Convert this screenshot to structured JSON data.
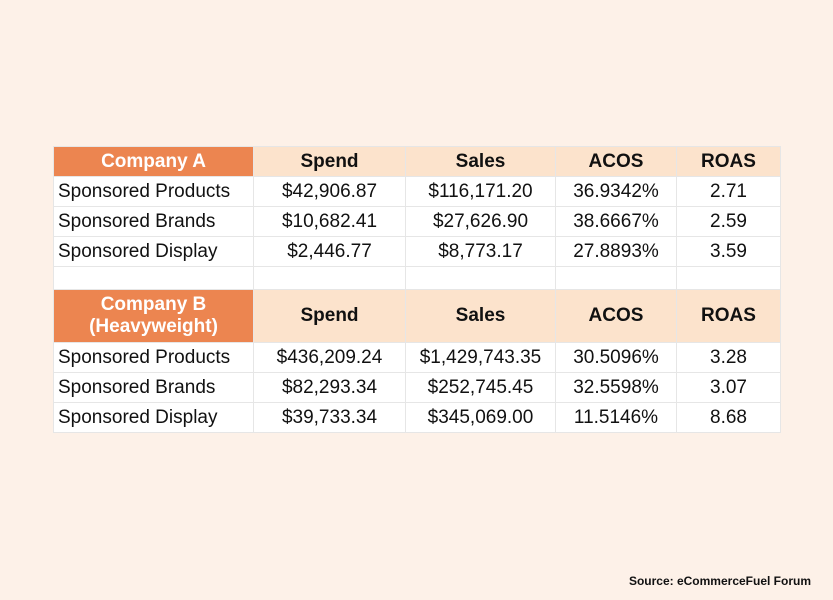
{
  "colors": {
    "background": "#fdf1e8",
    "company_header": "#ec8550",
    "column_header": "#fce3cc"
  },
  "columns": [
    "Spend",
    "Sales",
    "ACOS",
    "ROAS"
  ],
  "company_a": {
    "name": "Company A",
    "rows": [
      {
        "label": "Sponsored Products",
        "spend": "$42,906.87",
        "sales": "$116,171.20",
        "acos": "36.9342%",
        "roas": "2.71"
      },
      {
        "label": "Sponsored Brands",
        "spend": "$10,682.41",
        "sales": "$27,626.90",
        "acos": "38.6667%",
        "roas": "2.59"
      },
      {
        "label": "Sponsored Display",
        "spend": "$2,446.77",
        "sales": "$8,773.17",
        "acos": "27.8893%",
        "roas": "3.59"
      }
    ]
  },
  "company_b": {
    "name_line1": "Company B",
    "name_line2": "(Heavyweight)",
    "rows": [
      {
        "label": "Sponsored Products",
        "spend": "$436,209.24",
        "sales": "$1,429,743.35",
        "acos": "30.5096%",
        "roas": "3.28"
      },
      {
        "label": "Sponsored Brands",
        "spend": "$82,293.34",
        "sales": "$252,745.45",
        "acos": "32.5598%",
        "roas": "3.07"
      },
      {
        "label": "Sponsored Display",
        "spend": "$39,733.34",
        "sales": "$345,069.00",
        "acos": "11.5146%",
        "roas": "8.68"
      }
    ]
  },
  "source": "Source: eCommerceFuel Forum"
}
